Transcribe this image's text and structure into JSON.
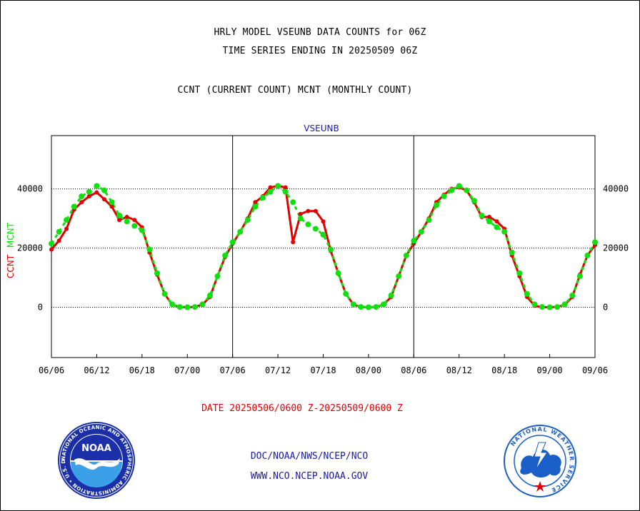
{
  "header": {
    "title_line1": "HRLY MODEL VSEUNB DATA COUNTS for 06Z",
    "title_line2": "TIME SERIES ENDING IN 20250509 06Z",
    "title_line3": "CCNT (CURRENT COUNT) MCNT (MONTHLY COUNT)"
  },
  "footer": {
    "date_range": "DATE 20250506/0600 Z-20250509/0600 Z",
    "credit_line1": "DOC/NOAA/NWS/NCEP/NCO",
    "credit_line2": "WWW.NCO.NCEP.NOAA.GOV"
  },
  "logos": {
    "noaa_text": "NOAA",
    "noaa_ring": "NATIONAL OCEANIC AND ATMOSPHERIC ADMINISTRATION • U.S. DEPARTMENT OF COMMERCE •",
    "nws_ring": "NATIONAL WEATHER SERVICE"
  },
  "colors": {
    "ccnt": "#e00000",
    "mcnt": "#10e010",
    "axis": "#000000",
    "plot_title": "#1a1aa8",
    "noaa_blue": "#1a2fa8",
    "noaa_light": "#3aa0e8",
    "nws_blue": "#1a5fc8"
  },
  "chart_data": {
    "type": "line",
    "title": "VSEUNB",
    "ylabel_parts": [
      "CCNT",
      "MCNT"
    ],
    "ylim": [
      -17000,
      58000
    ],
    "yticks": [
      0,
      20000,
      40000
    ],
    "ytick_labels": [
      "0",
      "20000",
      "40000"
    ],
    "xlim": [
      0,
      72
    ],
    "xticks": [
      0,
      6,
      12,
      18,
      24,
      30,
      36,
      42,
      48,
      54,
      60,
      66,
      72
    ],
    "xtick_labels": [
      "06/06",
      "06/12",
      "06/18",
      "07/00",
      "07/06",
      "07/12",
      "07/18",
      "08/00",
      "08/06",
      "08/12",
      "08/18",
      "09/00",
      "09/06"
    ],
    "day_dividers": [
      24,
      48
    ],
    "grid": "dotted horizontal at 0, 20000, 40000",
    "series": [
      {
        "name": "CCNT",
        "x": [
          0,
          1,
          2,
          3,
          4,
          5,
          6,
          7,
          8,
          9,
          10,
          11,
          12,
          13,
          14,
          15,
          16,
          17,
          18,
          19,
          20,
          21,
          22,
          23,
          24,
          25,
          26,
          27,
          28,
          29,
          30,
          31,
          32,
          33,
          34,
          35,
          36,
          37,
          38,
          39,
          40,
          41,
          42,
          43,
          44,
          45,
          46,
          47,
          48,
          49,
          50,
          51,
          52,
          53,
          54,
          55,
          56,
          57,
          58,
          59,
          60,
          61,
          62,
          63,
          64,
          65,
          66,
          67,
          68,
          69,
          70,
          71,
          72
        ],
        "values": [
          19500,
          22500,
          26500,
          33000,
          35500,
          37500,
          38800,
          36500,
          34000,
          29500,
          30500,
          29500,
          27000,
          18500,
          11000,
          4500,
          800,
          100,
          0,
          100,
          900,
          3500,
          10500,
          17000,
          21500,
          25500,
          30000,
          35500,
          37500,
          40500,
          41000,
          40500,
          22000,
          31500,
          32500,
          32500,
          29000,
          19000,
          11500,
          4500,
          900,
          100,
          0,
          150,
          900,
          3500,
          10500,
          17500,
          21500,
          25500,
          30000,
          35500,
          38000,
          40000,
          40500,
          39500,
          35500,
          30500,
          30500,
          29000,
          26500,
          17500,
          10500,
          3500,
          500,
          0,
          0,
          150,
          800,
          3500,
          11000,
          17500,
          21000
        ]
      },
      {
        "name": "MCNT",
        "x": [
          0,
          1,
          2,
          3,
          4,
          5,
          6,
          7,
          8,
          9,
          10,
          11,
          12,
          13,
          14,
          15,
          16,
          17,
          18,
          19,
          20,
          21,
          22,
          23,
          24,
          25,
          26,
          27,
          28,
          29,
          30,
          31,
          32,
          33,
          34,
          35,
          36,
          37,
          38,
          39,
          40,
          41,
          42,
          43,
          44,
          45,
          46,
          47,
          48,
          49,
          50,
          51,
          52,
          53,
          54,
          55,
          56,
          57,
          58,
          59,
          60,
          61,
          62,
          63,
          64,
          65,
          66,
          67,
          68,
          69,
          70,
          71,
          72
        ],
        "values": [
          21500,
          25500,
          29500,
          34000,
          37500,
          39000,
          41000,
          39500,
          35500,
          31000,
          29000,
          27500,
          26000,
          19500,
          11500,
          4500,
          1000,
          100,
          0,
          100,
          1000,
          4000,
          10500,
          17500,
          22000,
          25500,
          29500,
          34000,
          37000,
          39000,
          41000,
          39000,
          35500,
          30000,
          28000,
          26500,
          24500,
          19500,
          11500,
          4500,
          1000,
          100,
          0,
          100,
          1000,
          4000,
          10500,
          17500,
          22500,
          25500,
          29500,
          34500,
          37500,
          39500,
          41000,
          39500,
          36000,
          31000,
          29000,
          27000,
          25500,
          18500,
          11500,
          4500,
          1000,
          100,
          0,
          100,
          1000,
          4000,
          10500,
          17500,
          22000
        ]
      }
    ]
  }
}
